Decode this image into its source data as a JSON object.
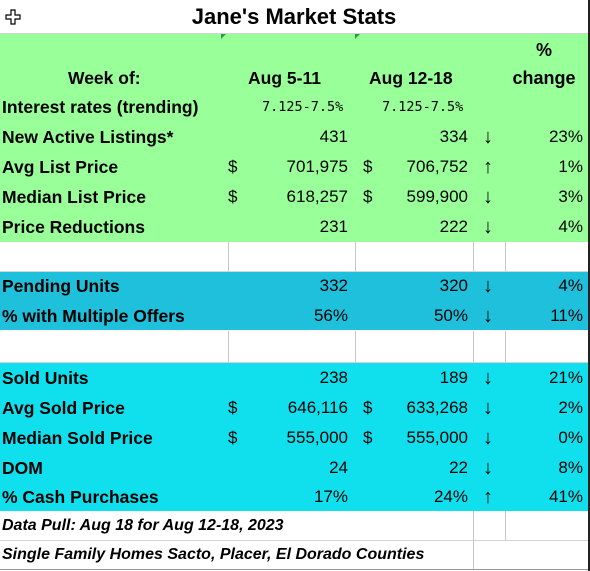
{
  "title": "Jane's Market Stats",
  "header": {
    "pct_line1": "%",
    "week_label": "Week of:",
    "col1": "Aug 5-11",
    "col2": "Aug 12-18",
    "pct_line2": "change"
  },
  "interest": {
    "label": "Interest rates (trending)",
    "col1": "7.125-7.5%",
    "col2": "7.125-7.5%"
  },
  "rows": {
    "new_active": {
      "label": "New Active Listings*",
      "col1": "431",
      "col2": "334",
      "arrow": "↓",
      "change": "23%"
    },
    "avg_list": {
      "label": "Avg List Price",
      "cur1": "$",
      "col1": "701,975",
      "cur2": "$",
      "col2": "706,752",
      "arrow": "↑",
      "change": "1%"
    },
    "median_list": {
      "label": "Median List Price",
      "cur1": "$",
      "col1": "618,257",
      "cur2": "$",
      "col2": "599,900",
      "arrow": "↓",
      "change": "3%"
    },
    "price_reductions": {
      "label": "Price Reductions",
      "col1": "231",
      "col2": "222",
      "arrow": "↓",
      "change": "4%"
    },
    "pending_units": {
      "label": "Pending Units",
      "col1": "332",
      "col2": "320",
      "arrow": "↓",
      "change": "4%"
    },
    "multiple_offers": {
      "label": "% with Multiple Offers",
      "col1": "56%",
      "col2": "50%",
      "arrow": "↓",
      "change": "11%"
    },
    "sold_units": {
      "label": "Sold Units",
      "col1": "238",
      "col2": "189",
      "arrow": "↓",
      "change": "21%"
    },
    "avg_sold": {
      "label": "Avg Sold Price",
      "cur1": "$",
      "col1": "646,116",
      "cur2": "$",
      "col2": "633,268",
      "arrow": "↓",
      "change": "2%"
    },
    "median_sold": {
      "label": "Median Sold Price",
      "cur1": "$",
      "col1": "555,000",
      "cur2": "$",
      "col2": "555,000",
      "arrow": "↓",
      "change": "0%"
    },
    "dom": {
      "label": "DOM",
      "col1": "24",
      "col2": "22",
      "arrow": "↓",
      "change": "8%"
    },
    "cash_purchases": {
      "label": "% Cash Purchases",
      "col1": "17%",
      "col2": "24%",
      "arrow": "↑",
      "change": "41%"
    }
  },
  "footer": {
    "line1": "Data Pull: Aug 18 for Aug 12-18, 2023",
    "line2": "Single Family Homes Sacto, Placer, El Dorado Counties"
  },
  "colors": {
    "green_section": "#99ff99",
    "pending_section": "#1fc0dc",
    "sold_section": "#10e0ee"
  },
  "icons": {
    "cursor": "move-cursor-icon"
  }
}
